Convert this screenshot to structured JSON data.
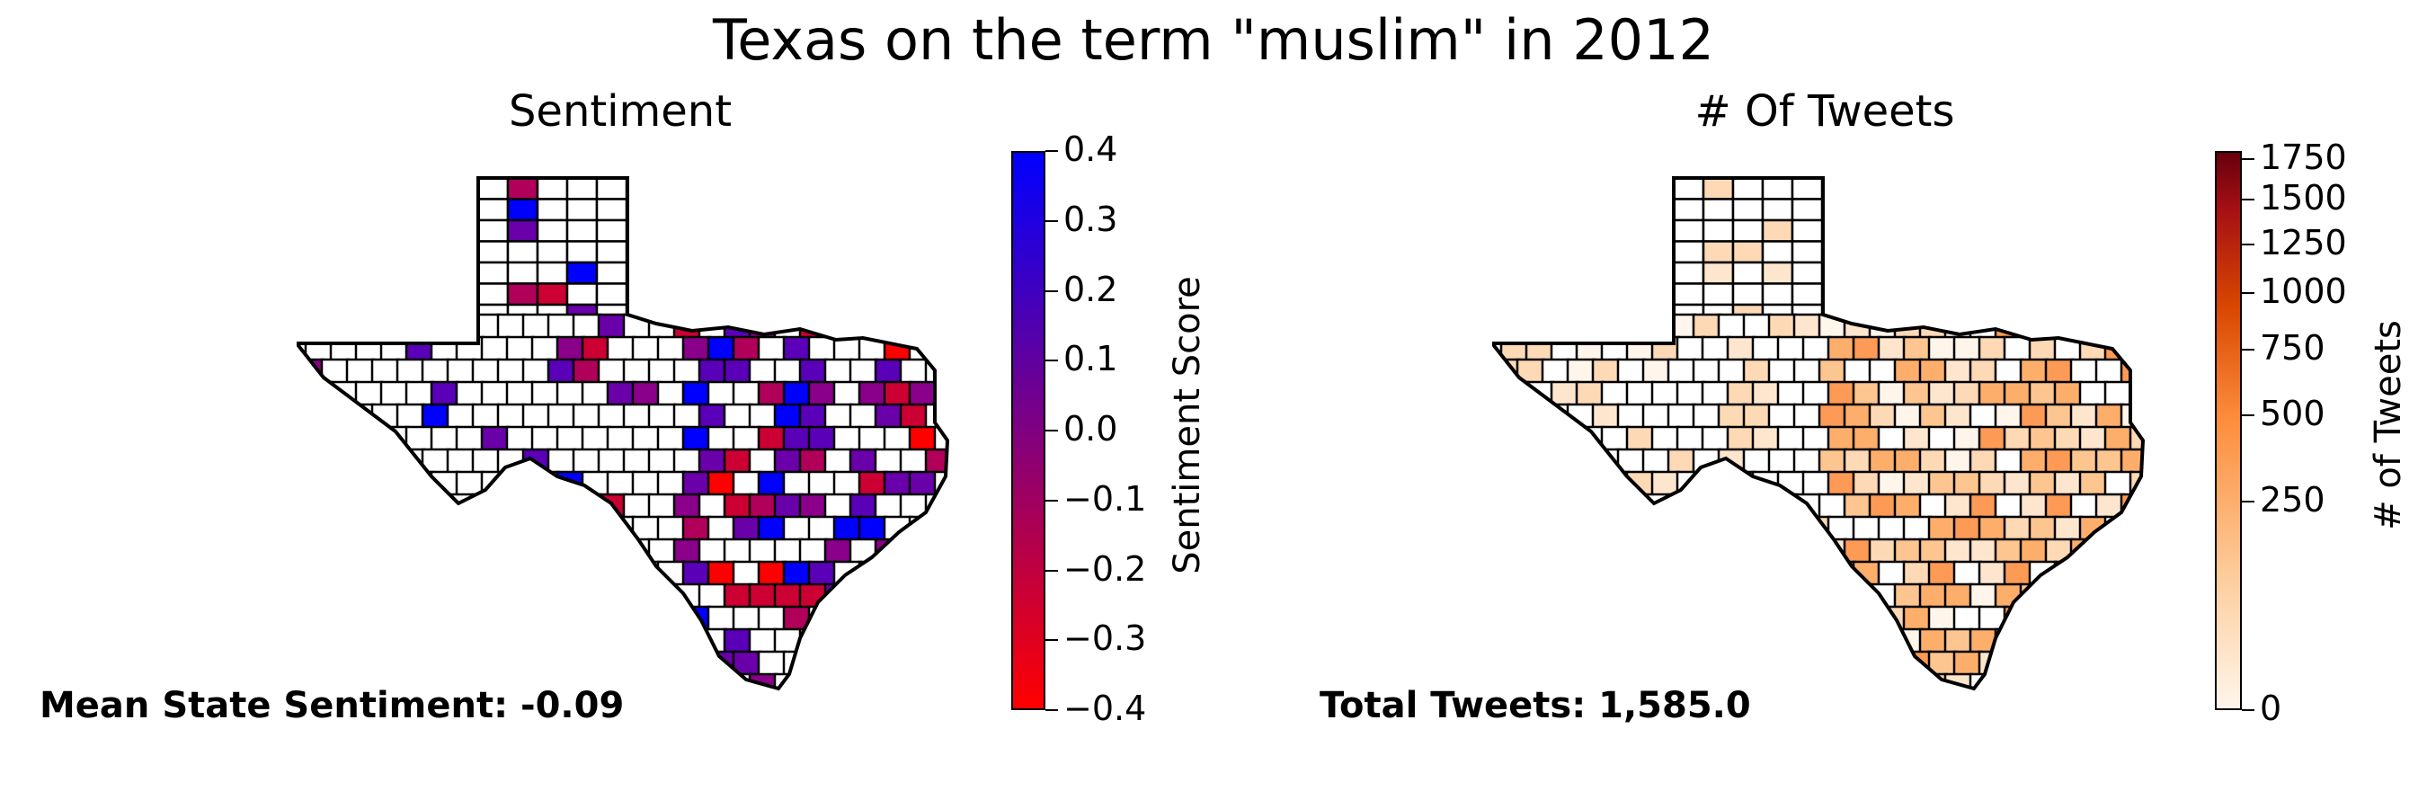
{
  "figure": {
    "title": "Texas on the term \"muslim\" in 2012"
  },
  "chart_data": [
    {
      "type": "choropleth",
      "title": "Sentiment",
      "colorbar_label": "Sentiment Score",
      "colormap": [
        "#ff0000",
        "#800080",
        "#0000ff"
      ],
      "range": [
        -0.4,
        0.4
      ],
      "ticks": [
        "0.4",
        "0.3",
        "0.2",
        "0.1",
        "0.0",
        "−0.1",
        "−0.2",
        "−0.3",
        "−0.4"
      ],
      "tick_values": [
        0.4,
        0.3,
        0.2,
        0.1,
        0.0,
        -0.1,
        -0.2,
        -0.3,
        -0.4
      ],
      "annotation": "Mean State Sentiment: -0.09",
      "no_data_color": "#ffffff",
      "boundary_color": "#000000"
    },
    {
      "type": "choropleth",
      "title": "# Of Tweets",
      "colorbar_label": "# of Tweets",
      "colormap": [
        "#fff5eb",
        "#fdd0a2",
        "#fd8d3c",
        "#d94801",
        "#a50f15",
        "#67000d"
      ],
      "scale": "sqrt",
      "range": [
        0,
        1800
      ],
      "ticks": [
        "1750",
        "1500",
        "1250",
        "1000",
        "750",
        "500",
        "250",
        "0"
      ],
      "tick_values": [
        1750,
        1500,
        1250,
        1000,
        750,
        500,
        250,
        0
      ],
      "annotation": "Total Tweets: 1,585.0",
      "boundary_color": "#000000"
    }
  ]
}
